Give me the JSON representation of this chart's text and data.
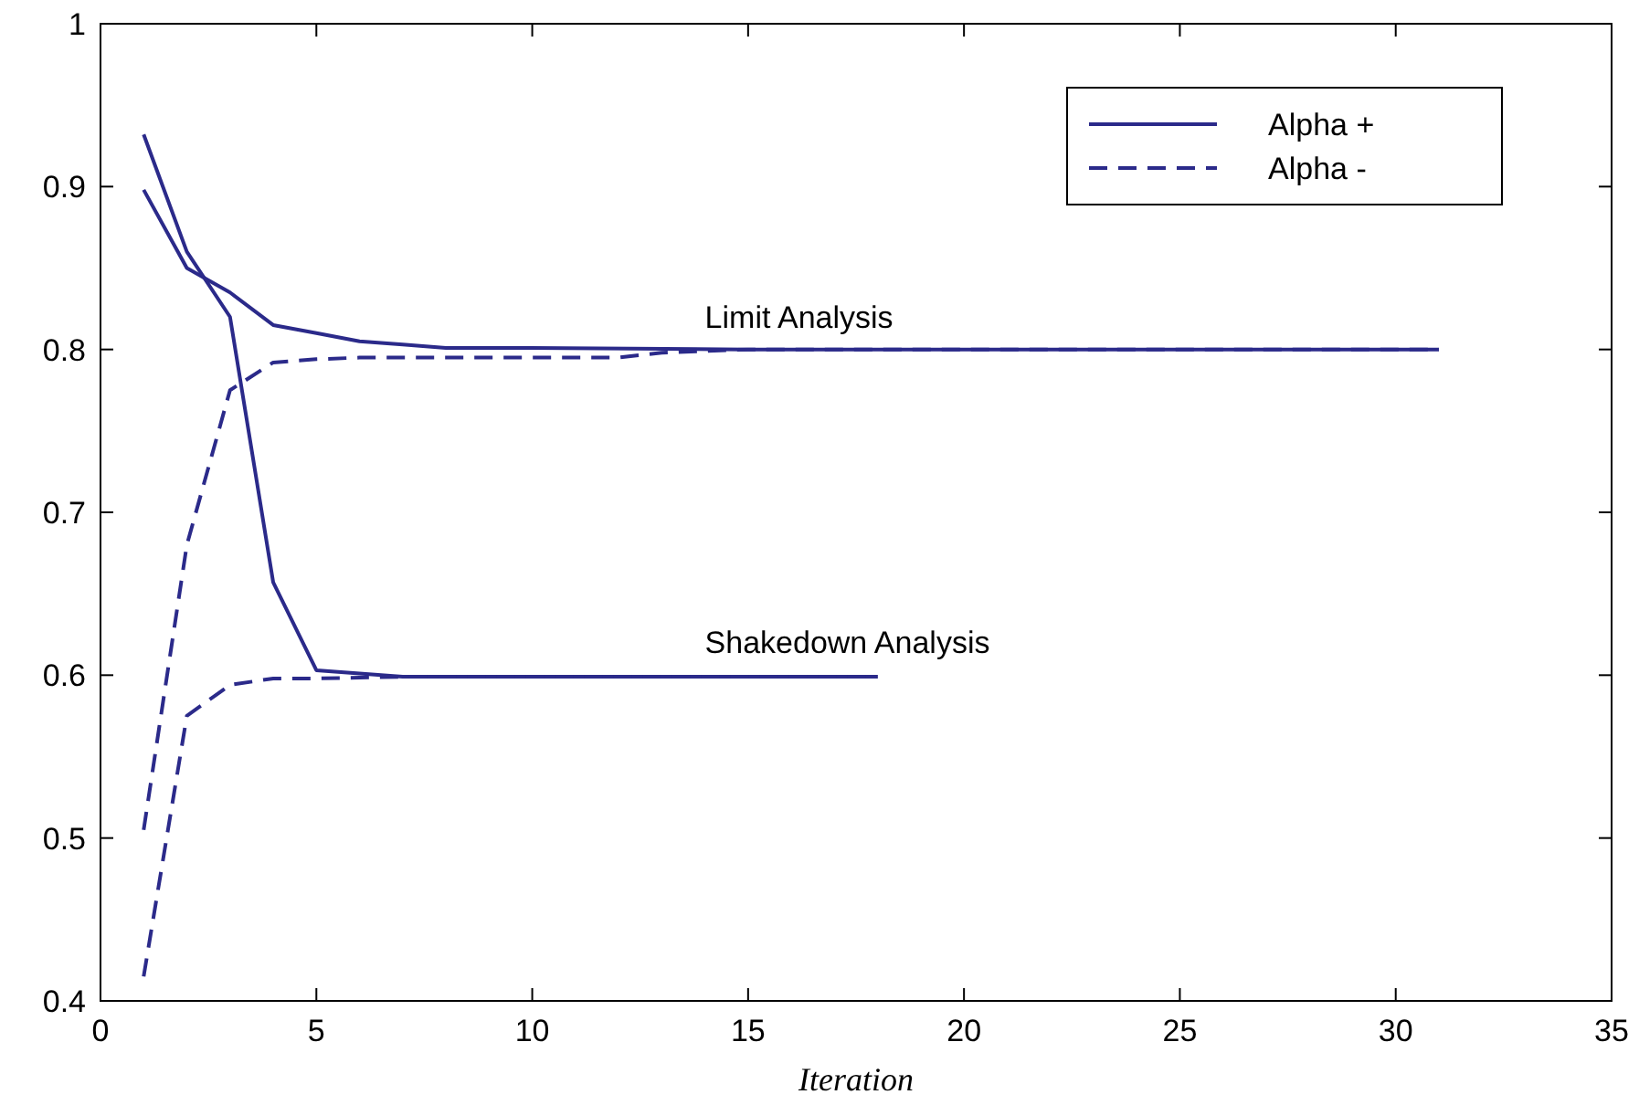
{
  "chart_data": {
    "type": "line",
    "xlabel": "Iteration",
    "xlim": [
      0,
      35
    ],
    "xticks": [
      0,
      5,
      10,
      15,
      20,
      25,
      30,
      35
    ],
    "ylim": [
      0.4,
      1
    ],
    "yticks": [
      0.4,
      0.5,
      0.6,
      0.7,
      0.8,
      0.9,
      1
    ],
    "grid": false,
    "legend": "top right",
    "marker": "none",
    "annotations": [
      {
        "text": "Limit Analysis",
        "x": 14,
        "y": 0.8
      },
      {
        "text": "Shakedown Analysis",
        "x": 14,
        "y": 0.6
      }
    ],
    "series": [
      {
        "name": "Alpha +",
        "color": "#2b2a8a",
        "line_style": "solid",
        "x": [
          1,
          2,
          3,
          4,
          5,
          6,
          7,
          8,
          10,
          15,
          20,
          25,
          31
        ],
        "values": [
          0.898,
          0.85,
          0.835,
          0.815,
          0.81,
          0.805,
          0.803,
          0.801,
          0.801,
          0.8,
          0.8,
          0.8,
          0.8
        ]
      },
      {
        "name": "Alpha -",
        "color": "#2b2a8a",
        "line_style": "dashed",
        "x": [
          1,
          2,
          3,
          4,
          5,
          6,
          8,
          10,
          12,
          13,
          15,
          20,
          25,
          31
        ],
        "values": [
          0.505,
          0.68,
          0.775,
          0.792,
          0.794,
          0.795,
          0.795,
          0.795,
          0.795,
          0.798,
          0.8,
          0.8,
          0.8,
          0.8
        ]
      },
      {
        "color": "#2b2a8a",
        "line_style": "solid",
        "x": [
          1,
          2,
          3,
          4,
          5,
          6,
          7,
          10,
          15,
          18
        ],
        "values": [
          0.932,
          0.86,
          0.82,
          0.657,
          0.603,
          0.601,
          0.599,
          0.599,
          0.599,
          0.599
        ]
      },
      {
        "color": "#2b2a8a",
        "line_style": "dashed",
        "x": [
          1,
          2,
          3,
          4,
          5,
          7,
          10,
          15,
          18
        ],
        "values": [
          0.415,
          0.575,
          0.594,
          0.598,
          0.598,
          0.599,
          0.599,
          0.599,
          0.599
        ]
      }
    ]
  }
}
